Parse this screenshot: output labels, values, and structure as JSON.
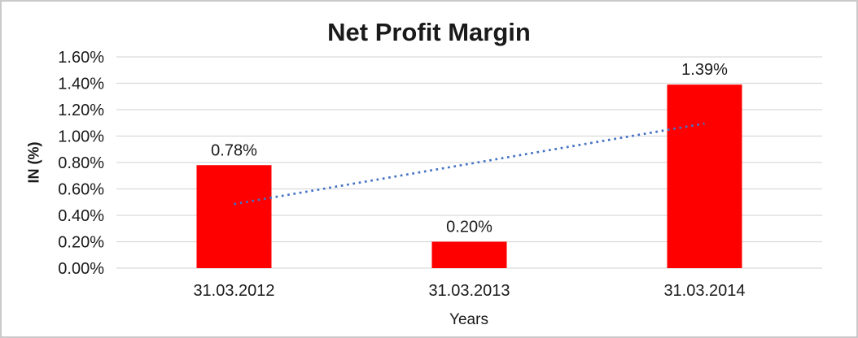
{
  "window": {
    "background": "#FFFFFF",
    "border_color": "#CBC9C9"
  },
  "chart_data": {
    "type": "bar",
    "title": "Net Profit Margin",
    "xlabel": "Years",
    "ylabel": "IN (%)",
    "categories": [
      "31.03.2012",
      "31.03.2013",
      "31.03.2014"
    ],
    "values": [
      0.78,
      0.2,
      1.39
    ],
    "data_labels": [
      "0.78%",
      "0.20%",
      "1.39%"
    ],
    "ylim": [
      0,
      1.6
    ],
    "ytick_step": 0.2,
    "yticks": [
      "0.00%",
      "0.20%",
      "0.40%",
      "0.60%",
      "0.80%",
      "1.00%",
      "1.20%",
      "1.40%",
      "1.60%"
    ],
    "grid": true,
    "legend": "none",
    "colors": {
      "bar": "#FF0000",
      "trendline": "#4472C4",
      "gridline": "#D9D9D9",
      "text": "#1A1A1A"
    },
    "trendline": {
      "type": "linear",
      "style": "dotted",
      "start_value": 0.485,
      "end_value": 1.095
    }
  }
}
